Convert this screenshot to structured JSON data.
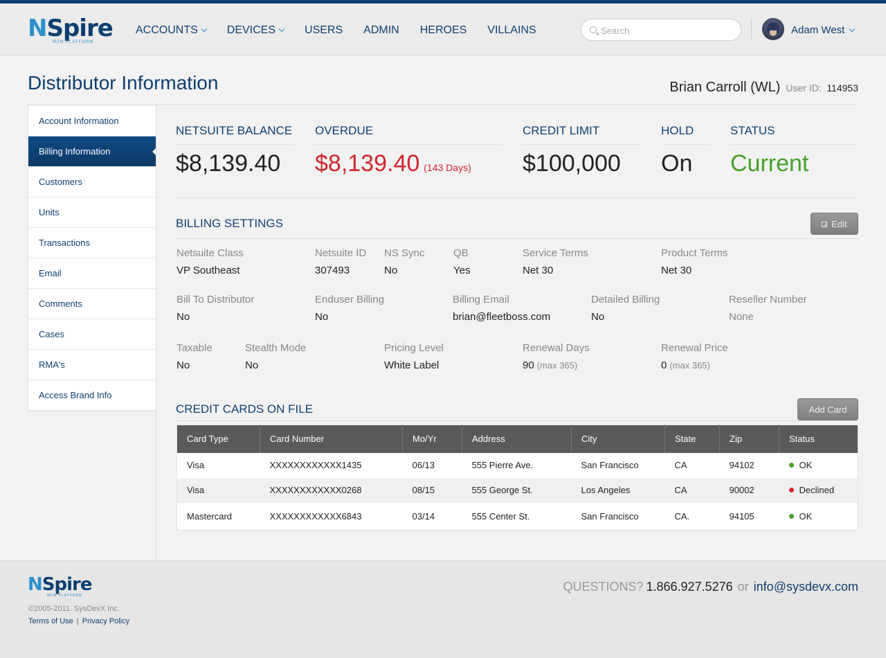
{
  "brand": {
    "logo_n": "N",
    "logo_spire": "Spire",
    "logo_sub": "M2M PLATFORM"
  },
  "nav": {
    "items": [
      {
        "label": "ACCOUNTS",
        "dropdown": true
      },
      {
        "label": "DEVICES",
        "dropdown": true
      },
      {
        "label": "USERS",
        "dropdown": false
      },
      {
        "label": "ADMIN",
        "dropdown": false
      },
      {
        "label": "HEROES",
        "dropdown": false
      },
      {
        "label": "VILLAINS",
        "dropdown": false
      }
    ]
  },
  "search": {
    "placeholder": "Search",
    "icon": "search-icon"
  },
  "user": {
    "name": "Adam West",
    "avatar_icon": "avatar-icon"
  },
  "page": {
    "title": "Distributor Information",
    "person": "Brian Carroll (WL)",
    "user_id_label": "User ID:",
    "user_id": "114953"
  },
  "sidebar": {
    "items": [
      {
        "label": "Account Information",
        "active": false
      },
      {
        "label": "Billing Information",
        "active": true
      },
      {
        "label": "Customers",
        "active": false
      },
      {
        "label": "Units",
        "active": false
      },
      {
        "label": "Transactions",
        "active": false
      },
      {
        "label": "Email",
        "active": false
      },
      {
        "label": "Comments",
        "active": false
      },
      {
        "label": "Cases",
        "active": false
      },
      {
        "label": "RMA's",
        "active": false
      },
      {
        "label": "Access Brand Info",
        "active": false
      }
    ]
  },
  "summary": {
    "netsuite_balance": {
      "label": "NETSUITE BALANCE",
      "value": "$8,139.40"
    },
    "overdue": {
      "label": "OVERDUE",
      "value": "$8,139.40",
      "days": "(143 Days)"
    },
    "credit_limit": {
      "label": "CREDIT LIMIT",
      "value": "$100,000"
    },
    "hold": {
      "label": "HOLD",
      "value": "On"
    },
    "status": {
      "label": "STATUS",
      "value": "Current"
    }
  },
  "billing_settings": {
    "title": "BILLING SETTINGS",
    "edit_label": "Edit",
    "netsuite_class": {
      "label": "Netsuite Class",
      "value": "VP Southeast"
    },
    "netsuite_id": {
      "label": "Netsuite ID",
      "value": "307493"
    },
    "ns_sync": {
      "label": "NS Sync",
      "value": "No"
    },
    "qb": {
      "label": "QB",
      "value": "Yes"
    },
    "service_terms": {
      "label": "Service Terms",
      "value": "Net 30"
    },
    "product_terms": {
      "label": "Product Terms",
      "value": "Net 30"
    },
    "bill_to_distributor": {
      "label": "Bill To Distributor",
      "value": "No"
    },
    "enduser_billing": {
      "label": "Enduser Billing",
      "value": "No"
    },
    "billing_email": {
      "label": "Billing Email",
      "value": "brian@fleetboss.com"
    },
    "detailed_billing": {
      "label": "Detailed Billing",
      "value": "No"
    },
    "reseller_number": {
      "label": "Reseller Number",
      "value": "None"
    },
    "taxable": {
      "label": "Taxable",
      "value": "No"
    },
    "stealth_mode": {
      "label": "Stealth Mode",
      "value": "No"
    },
    "pricing_level": {
      "label": "Pricing Level",
      "value": "White Label"
    },
    "renewal_days": {
      "label": "Renewal Days",
      "value": "90",
      "max": "(max 365)"
    },
    "renewal_price": {
      "label": "Renewal Price",
      "value": "0",
      "max": "(max 365)"
    }
  },
  "credit_cards": {
    "title": "CREDIT CARDS ON FILE",
    "add_label": "Add Card",
    "columns": [
      "Card Type",
      "Card Number",
      "Mo/Yr",
      "Address",
      "City",
      "State",
      "Zip",
      "Status"
    ],
    "rows": [
      {
        "type": "Visa",
        "number": "XXXXXXXXXXXX1435",
        "moyr": "06/13",
        "address": "555 Pierre Ave.",
        "city": "San Francisco",
        "state": "CA",
        "zip": "94102",
        "status": "OK"
      },
      {
        "type": "Visa",
        "number": "XXXXXXXXXXXX0268",
        "moyr": "08/15",
        "address": "555 George St.",
        "city": "Los Angeles",
        "state": "CA",
        "zip": "90002",
        "status": "Declined"
      },
      {
        "type": "Mastercard",
        "number": "XXXXXXXXXXXX6843",
        "moyr": "03/14",
        "address": "555 Center St.",
        "city": "San Francisco",
        "state": "CA.",
        "zip": "94105",
        "status": "OK"
      }
    ]
  },
  "footer": {
    "copyright": "©2005-2011. SysDevX Inc.",
    "terms": "Terms of Use",
    "separator": "|",
    "privacy": "Privacy Policy",
    "questions": "QUESTIONS?",
    "phone": "1.866.927.5276",
    "or": "or",
    "email": "info@sysdevx.com"
  },
  "colors": {
    "brand_dark": "#0e3f70",
    "brand_light": "#2d8fc9",
    "overdue_red": "#d0262d",
    "status_green": "#46a02b"
  }
}
